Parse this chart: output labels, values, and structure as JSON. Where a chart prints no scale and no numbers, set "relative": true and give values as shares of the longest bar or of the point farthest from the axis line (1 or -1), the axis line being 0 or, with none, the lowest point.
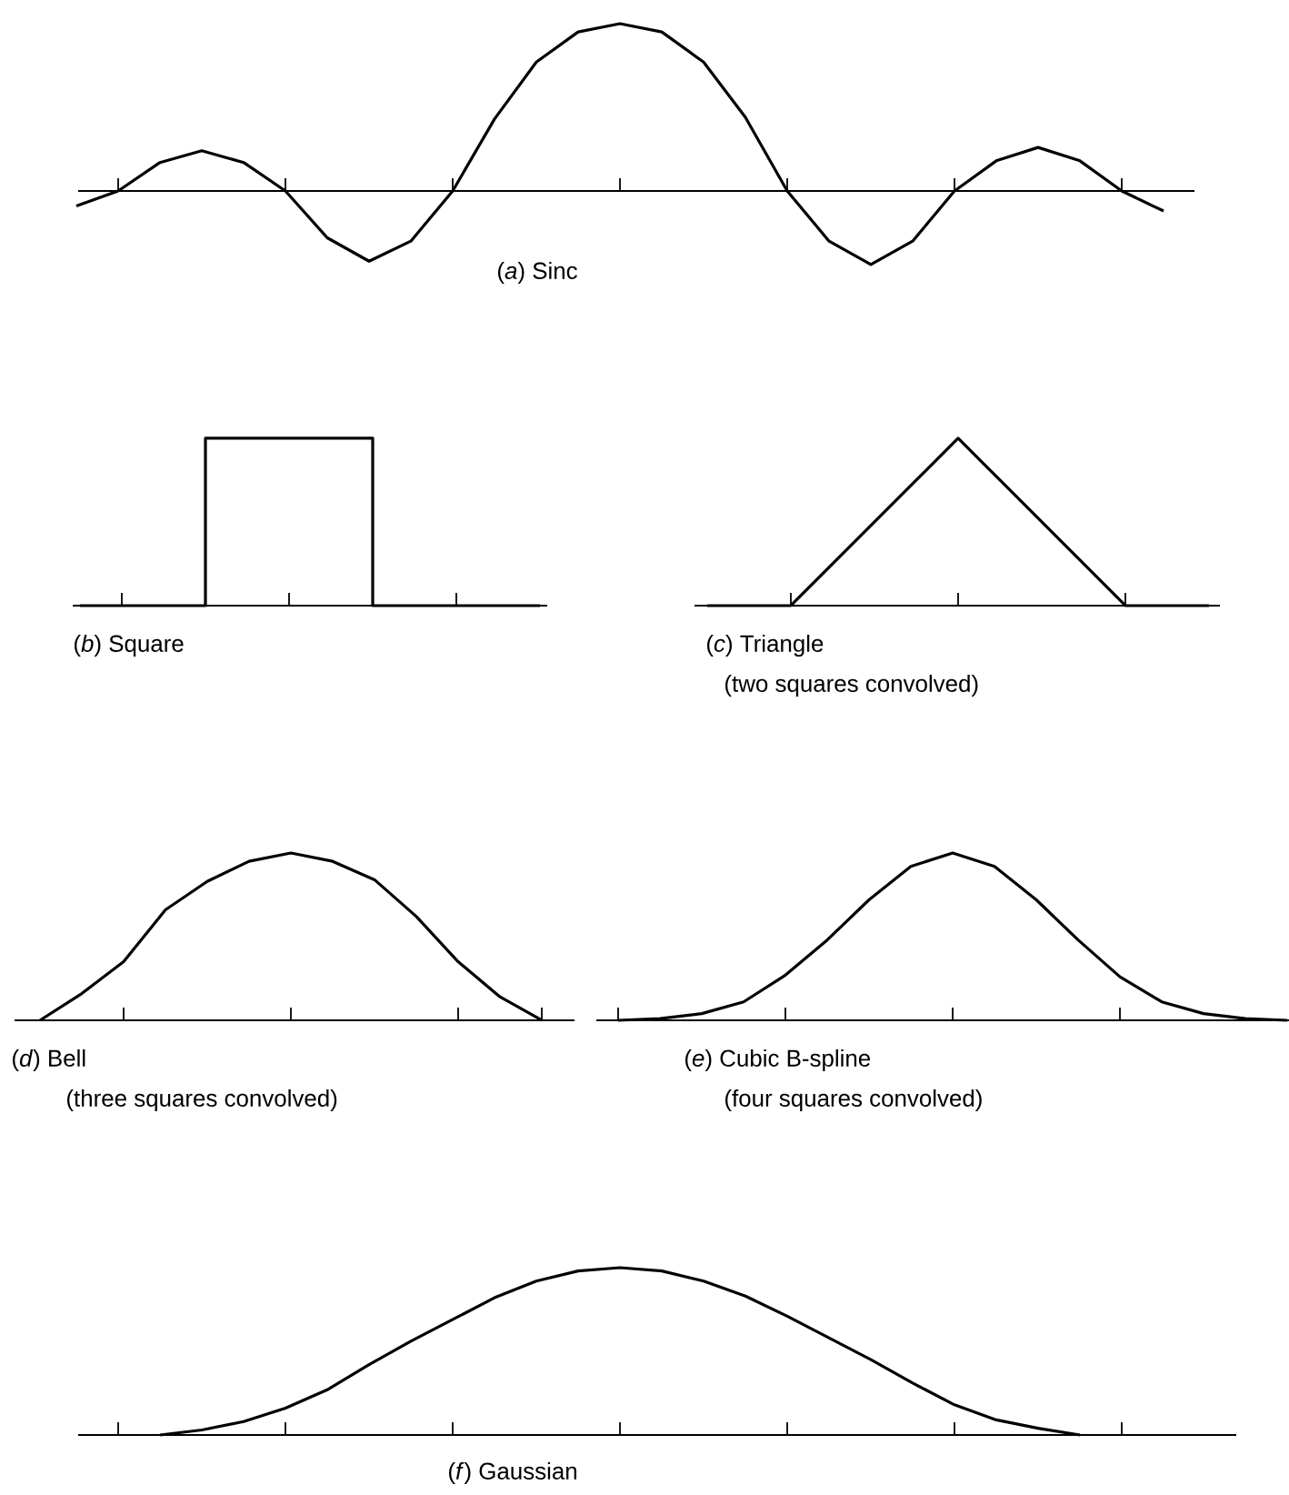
{
  "chart_data": [
    {
      "type": "line",
      "title": "(*a*) Sinc",
      "relative": true,
      "color": "#000000",
      "categories": [
        null,
        null,
        null,
        null,
        null,
        null,
        null,
        null,
        null,
        null,
        null,
        null,
        null,
        null,
        null,
        null,
        null,
        null,
        null,
        null,
        null,
        null,
        null,
        null,
        null,
        null,
        null
      ],
      "values": [
        -0.09,
        0,
        0.17,
        0.24,
        0.17,
        0,
        -0.28,
        -0.42,
        -0.3,
        0,
        0.43,
        0.77,
        0.95,
        1,
        0.95,
        0.77,
        0.44,
        0,
        -0.3,
        -0.44,
        -0.3,
        0,
        0.18,
        0.26,
        0.18,
        0,
        -0.12
      ]
    },
    {
      "type": "step",
      "title": "(*b*) Square",
      "relative": true,
      "color": "#000000",
      "categories": [
        null,
        null,
        null,
        null,
        null,
        null,
        null,
        null,
        null,
        null,
        null,
        null
      ],
      "values": [
        0,
        0,
        0,
        1,
        1,
        1,
        1,
        0,
        0,
        0,
        0,
        0
      ]
    },
    {
      "type": "line",
      "title": "(*c*) Triangle",
      "subtitle": "(two squares convolved)",
      "relative": true,
      "color": "#000000",
      "categories": [
        null,
        null,
        null,
        null,
        null,
        null,
        null,
        null,
        null,
        null,
        null,
        null,
        null
      ],
      "values": [
        0,
        0,
        0,
        0.25,
        0.5,
        0.75,
        1,
        0.75,
        0.5,
        0.25,
        0,
        0,
        0
      ]
    },
    {
      "type": "line",
      "title": "(*d*) Bell",
      "subtitle": "(three squares convolved)",
      "relative": true,
      "color": "#000000",
      "categories": [
        null,
        null,
        null,
        null,
        null,
        null,
        null,
        null,
        null,
        null,
        null,
        null,
        null
      ],
      "values": [
        0,
        0.16,
        0.35,
        0.66,
        0.83,
        0.95,
        1,
        0.95,
        0.84,
        0.62,
        0.35,
        0.14,
        0
      ]
    },
    {
      "type": "line",
      "title": "(*e*) Cubic B-spline",
      "subtitle": "(four squares convolved)",
      "relative": true,
      "color": "#000000",
      "categories": [
        null,
        null,
        null,
        null,
        null,
        null,
        null,
        null,
        null,
        null,
        null,
        null,
        null,
        null,
        null,
        null,
        null
      ],
      "values": [
        0,
        0.01,
        0.04,
        0.11,
        0.27,
        0.48,
        0.72,
        0.92,
        1,
        0.92,
        0.72,
        0.48,
        0.26,
        0.11,
        0.04,
        0.01,
        0
      ]
    },
    {
      "type": "line",
      "title": "(*f*) Gaussian",
      "relative": true,
      "color": "#000000",
      "categories": [
        null,
        null,
        null,
        null,
        null,
        null,
        null,
        null,
        null,
        null,
        null,
        null,
        null,
        null,
        null,
        null,
        null,
        null,
        null,
        null,
        null,
        null,
        null
      ],
      "values": [
        0,
        0.03,
        0.08,
        0.16,
        0.27,
        0.42,
        0.56,
        0.69,
        0.82,
        0.92,
        0.98,
        1,
        0.98,
        0.92,
        0.83,
        0.71,
        0.58,
        0.45,
        0.31,
        0.18,
        0.09,
        0.04,
        0
      ]
    }
  ]
}
